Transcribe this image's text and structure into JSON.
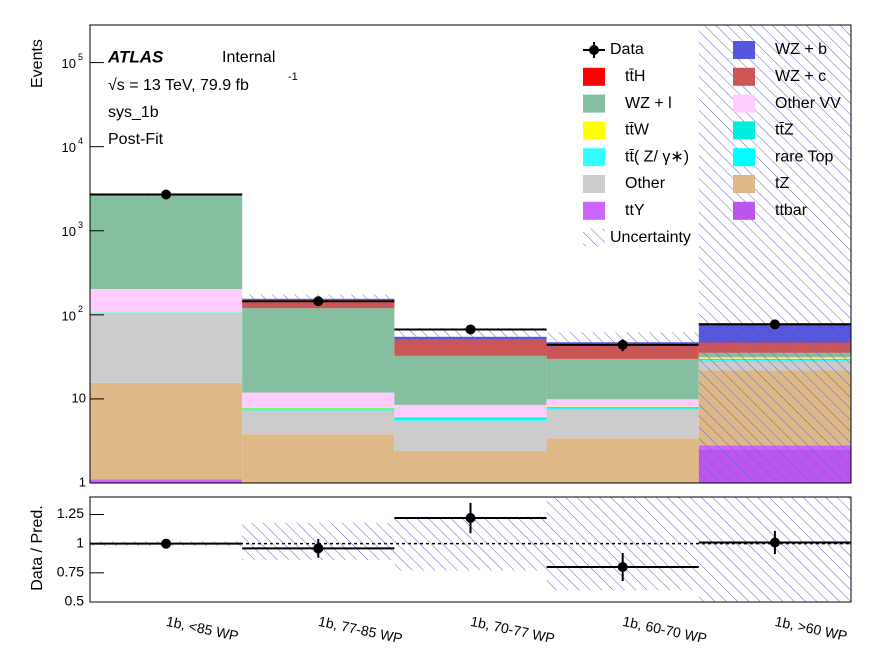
{
  "chart_data": [
    {
      "type": "bar",
      "stacked": true,
      "log_scale": true,
      "grid": false,
      "ylabel": "Events",
      "annotations": {
        "experiment": "ATLAS",
        "status": "Internal",
        "energy": "√s = 13 TeV, 79.9 fb",
        "energy_exponent": "-1",
        "region": "sys_1b",
        "fit": "Post-Fit"
      },
      "categories": [
        "1b, <85 WP",
        "1b, 77-85 WP",
        "1b, 70-77 WP",
        "1b, 60-70 WP",
        "1b, >60 WP"
      ],
      "ylim": [
        1,
        280000
      ],
      "yticks": [
        1,
        10,
        {
          "value": 100,
          "label": "10",
          "exponent": "2"
        },
        {
          "value": 1000,
          "label": "10",
          "exponent": "3"
        },
        {
          "value": 10000,
          "label": "10",
          "exponent": "4"
        },
        {
          "value": 100000,
          "label": "10",
          "exponent": "5"
        }
      ],
      "series": [
        {
          "name": "ttbar",
          "color": "#bb55ee",
          "values": [
            1.05,
            0.05,
            0.05,
            0.05,
            2.5
          ]
        },
        {
          "name": "ttY",
          "color": "#cc66ff",
          "values": [
            0.05,
            0.05,
            0.05,
            0.05,
            0.3
          ]
        },
        {
          "name": "tZ",
          "color": "#deb887",
          "values": [
            14.5,
            3.7,
            2.3,
            3.3,
            19
          ]
        },
        {
          "name": "Other",
          "color": "#cccccc",
          "values": [
            90,
            3.5,
            3.1,
            4.1,
            6
          ]
        },
        {
          "name": "rare Top",
          "color": "#00ffff",
          "values": [
            0.5,
            0.1,
            0.1,
            0.1,
            0.5
          ]
        },
        {
          "name": "tt̄( Z/ γ∗)",
          "color": "#33ffff",
          "values": [
            0.5,
            0.1,
            0.1,
            0.1,
            0.5
          ]
        },
        {
          "name": "tt̄Z",
          "color": "#00eedd",
          "values": [
            0.5,
            0.2,
            0.3,
            0.3,
            1
          ]
        },
        {
          "name": "tt̄W",
          "color": "#ffff00",
          "values": [
            0.5,
            0.2,
            0.1,
            0.1,
            0.5
          ]
        },
        {
          "name": "Other  VV",
          "color": "#ffccff",
          "values": [
            95,
            4,
            2.4,
            1.8,
            1
          ]
        },
        {
          "name": "WZ + l",
          "color": "#85bf9f",
          "values": [
            2500,
            108,
            24,
            20,
            4
          ]
        },
        {
          "name": "WZ + c",
          "color": "#cc5555",
          "values": [
            0.1,
            30,
            18,
            13,
            11
          ]
        },
        {
          "name": "tt̄H",
          "color": "#ff0000",
          "values": [
            0.1,
            0.5,
            0.3,
            0.3,
            0.5
          ]
        },
        {
          "name": "WZ + b",
          "color": "#5555dd",
          "values": [
            0.1,
            5,
            4,
            4,
            33
          ]
        }
      ],
      "data": {
        "name": "Data",
        "color": "#000000",
        "values": [
          2700,
          145,
          67,
          44,
          77
        ],
        "errors": [
          52,
          12,
          8,
          7,
          9
        ]
      },
      "uncertainty": {
        "name": "Uncertainty",
        "color": "#6666cc",
        "low": [
          2650,
          130,
          45,
          38,
          0.5
        ],
        "high": [
          2800,
          175,
          70,
          62,
          500000
        ]
      }
    },
    {
      "type": "scatter",
      "ylabel": "Data / Pred.",
      "reference": 1,
      "ylim": [
        0.5,
        1.4
      ],
      "yticks": [
        0.5,
        0.75,
        1,
        1.25
      ],
      "values": [
        1.0,
        0.96,
        1.22,
        0.8,
        1.01
      ],
      "errors": [
        0.02,
        0.08,
        0.13,
        0.12,
        0.1
      ],
      "uncertainty_low": [
        0.98,
        0.86,
        0.77,
        0.6,
        0.3
      ],
      "uncertainty_high": [
        1.02,
        1.18,
        1.23,
        1.5,
        1.6
      ]
    }
  ]
}
